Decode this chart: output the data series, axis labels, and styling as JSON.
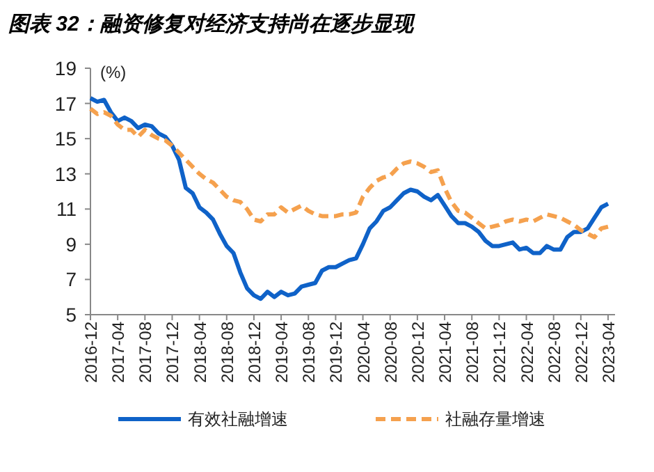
{
  "chart_data": {
    "type": "line",
    "title": "图表 32：融资修复对经济支持尚在逐步显现",
    "ylabel": "(%)",
    "categories": [
      "2016-12",
      null,
      null,
      null,
      "2017-04",
      null,
      null,
      null,
      "2017-08",
      null,
      null,
      null,
      "2017-12",
      null,
      null,
      null,
      "2018-04",
      null,
      null,
      null,
      "2018-08",
      null,
      null,
      null,
      "2018-12",
      null,
      null,
      null,
      "2019-04",
      null,
      null,
      null,
      "2019-08",
      null,
      null,
      null,
      "2019-12",
      null,
      null,
      null,
      "2020-04",
      null,
      null,
      null,
      "2020-08",
      null,
      null,
      null,
      "2020-12",
      null,
      null,
      null,
      "2021-04",
      null,
      null,
      null,
      "2021-08",
      null,
      null,
      null,
      "2021-12",
      null,
      null,
      null,
      "2022-04",
      null,
      null,
      null,
      "2022-08",
      null,
      null,
      null,
      "2022-12",
      null,
      null,
      null,
      "2023-04"
    ],
    "series": [
      {
        "name": "有效社融增速",
        "color": "#0f62c8",
        "line_style": "solid",
        "values": [
          17.3,
          17.1,
          17.2,
          16.5,
          16.0,
          16.2,
          16.0,
          15.6,
          15.8,
          15.7,
          15.3,
          15.1,
          14.6,
          13.8,
          12.2,
          11.9,
          11.1,
          10.8,
          10.4,
          9.6,
          8.9,
          8.5,
          7.4,
          6.5,
          6.1,
          5.9,
          6.3,
          6.0,
          6.3,
          6.1,
          6.2,
          6.6,
          6.7,
          6.8,
          7.5,
          7.7,
          7.7,
          7.9,
          8.1,
          8.2,
          9.0,
          9.9,
          10.3,
          10.9,
          11.1,
          11.5,
          11.9,
          12.1,
          12.0,
          11.7,
          11.5,
          11.8,
          11.2,
          10.6,
          10.2,
          10.2,
          10.0,
          9.7,
          9.2,
          8.9,
          8.9,
          9.0,
          9.1,
          8.7,
          8.8,
          8.5,
          8.5,
          8.9,
          8.7,
          8.7,
          9.4,
          9.7,
          9.7,
          9.9,
          10.5,
          11.1,
          11.3
        ]
      },
      {
        "name": "社融存量增速",
        "color": "#f5a14e",
        "line_style": "dashed",
        "values": [
          16.7,
          16.4,
          16.5,
          16.3,
          15.8,
          15.5,
          15.5,
          15.1,
          15.5,
          15.2,
          15.0,
          14.9,
          14.6,
          14.2,
          13.8,
          13.4,
          13.0,
          12.7,
          12.5,
          12.1,
          11.7,
          11.5,
          11.4,
          11.0,
          10.4,
          10.3,
          10.7,
          10.7,
          11.1,
          10.8,
          11.0,
          11.2,
          10.9,
          10.7,
          10.6,
          10.6,
          10.6,
          10.7,
          10.7,
          10.8,
          11.7,
          12.2,
          12.6,
          12.8,
          12.9,
          13.3,
          13.6,
          13.7,
          13.6,
          13.4,
          13.1,
          13.2,
          12.2,
          11.4,
          10.9,
          10.8,
          10.5,
          10.2,
          9.9,
          10.0,
          10.1,
          10.3,
          10.4,
          10.3,
          10.4,
          10.3,
          10.5,
          10.7,
          10.6,
          10.5,
          10.3,
          10.1,
          9.8,
          9.6,
          9.4,
          9.9,
          10.0
        ]
      }
    ],
    "ylim": [
      5,
      19
    ],
    "yticks": [
      5,
      7,
      9,
      11,
      13,
      15,
      17,
      19
    ],
    "grid": false,
    "legend": "bottom"
  }
}
